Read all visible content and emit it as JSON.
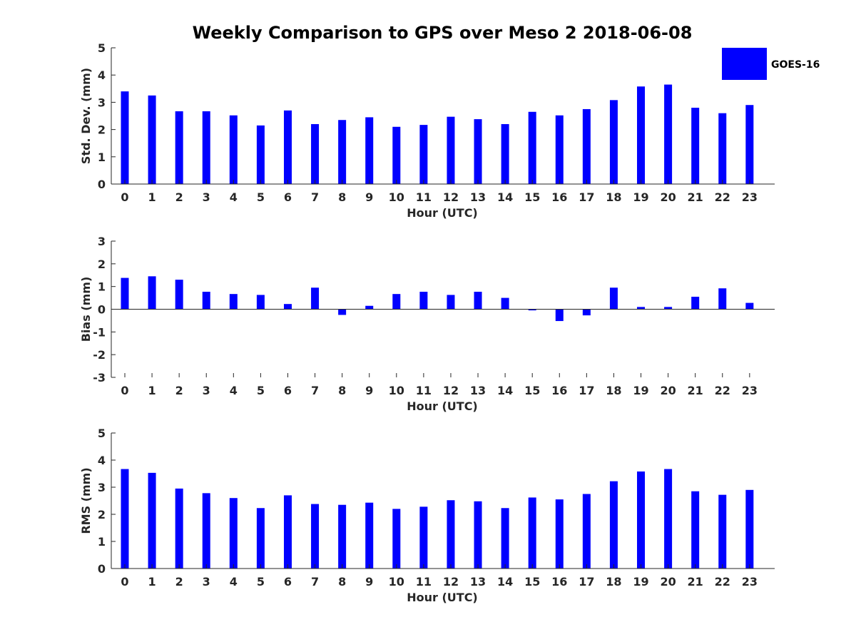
{
  "title": "Weekly Comparison to GPS over Meso 2 2018-06-08",
  "colors": {
    "bar": "#0000ff",
    "axis": "#262626",
    "text": "#262626"
  },
  "legend": {
    "label": "GOES-16",
    "placement": "top-right"
  },
  "chart_data": [
    {
      "type": "bar",
      "name": "std-dev",
      "series_name": "GOES-16",
      "categories": [
        "0",
        "1",
        "2",
        "3",
        "4",
        "5",
        "6",
        "7",
        "8",
        "9",
        "10",
        "11",
        "12",
        "13",
        "14",
        "15",
        "16",
        "17",
        "18",
        "19",
        "20",
        "21",
        "22",
        "23"
      ],
      "values": [
        3.4,
        3.25,
        2.67,
        2.67,
        2.52,
        2.15,
        2.7,
        2.2,
        2.35,
        2.45,
        2.1,
        2.17,
        2.47,
        2.38,
        2.2,
        2.65,
        2.52,
        2.75,
        3.08,
        3.58,
        3.65,
        2.8,
        2.6,
        2.9
      ],
      "xlabel": "Hour (UTC)",
      "ylabel": "Std. Dev. (mm)",
      "ylim": [
        0,
        5
      ],
      "yticks": [
        "0",
        "1",
        "2",
        "3",
        "4",
        "5"
      ],
      "grid": false
    },
    {
      "type": "bar",
      "name": "bias",
      "series_name": "GOES-16",
      "categories": [
        "0",
        "1",
        "2",
        "3",
        "4",
        "5",
        "6",
        "7",
        "8",
        "9",
        "10",
        "11",
        "12",
        "13",
        "14",
        "15",
        "16",
        "17",
        "18",
        "19",
        "20",
        "21",
        "22",
        "23"
      ],
      "values": [
        1.38,
        1.45,
        1.3,
        0.77,
        0.67,
        0.63,
        0.23,
        0.95,
        -0.25,
        0.15,
        0.67,
        0.77,
        0.63,
        0.77,
        0.5,
        -0.05,
        -0.52,
        -0.27,
        0.95,
        0.1,
        0.1,
        0.55,
        0.92,
        0.28
      ],
      "xlabel": "Hour (UTC)",
      "ylabel": "Bias (mm)",
      "ylim": [
        -3,
        3
      ],
      "yticks": [
        "-3",
        "-2",
        "-1",
        "0",
        "1",
        "2",
        "3"
      ],
      "grid": false
    },
    {
      "type": "bar",
      "name": "rms",
      "series_name": "GOES-16",
      "categories": [
        "0",
        "1",
        "2",
        "3",
        "4",
        "5",
        "6",
        "7",
        "8",
        "9",
        "10",
        "11",
        "12",
        "13",
        "14",
        "15",
        "16",
        "17",
        "18",
        "19",
        "20",
        "21",
        "22",
        "23"
      ],
      "values": [
        3.67,
        3.53,
        2.95,
        2.78,
        2.6,
        2.23,
        2.7,
        2.38,
        2.35,
        2.43,
        2.2,
        2.28,
        2.52,
        2.48,
        2.23,
        2.62,
        2.55,
        2.75,
        3.22,
        3.58,
        3.67,
        2.85,
        2.72,
        2.9
      ],
      "xlabel": "Hour (UTC)",
      "ylabel": "RMS (mm)",
      "ylim": [
        0,
        5
      ],
      "yticks": [
        "0",
        "1",
        "2",
        "3",
        "4",
        "5"
      ],
      "grid": false
    }
  ]
}
